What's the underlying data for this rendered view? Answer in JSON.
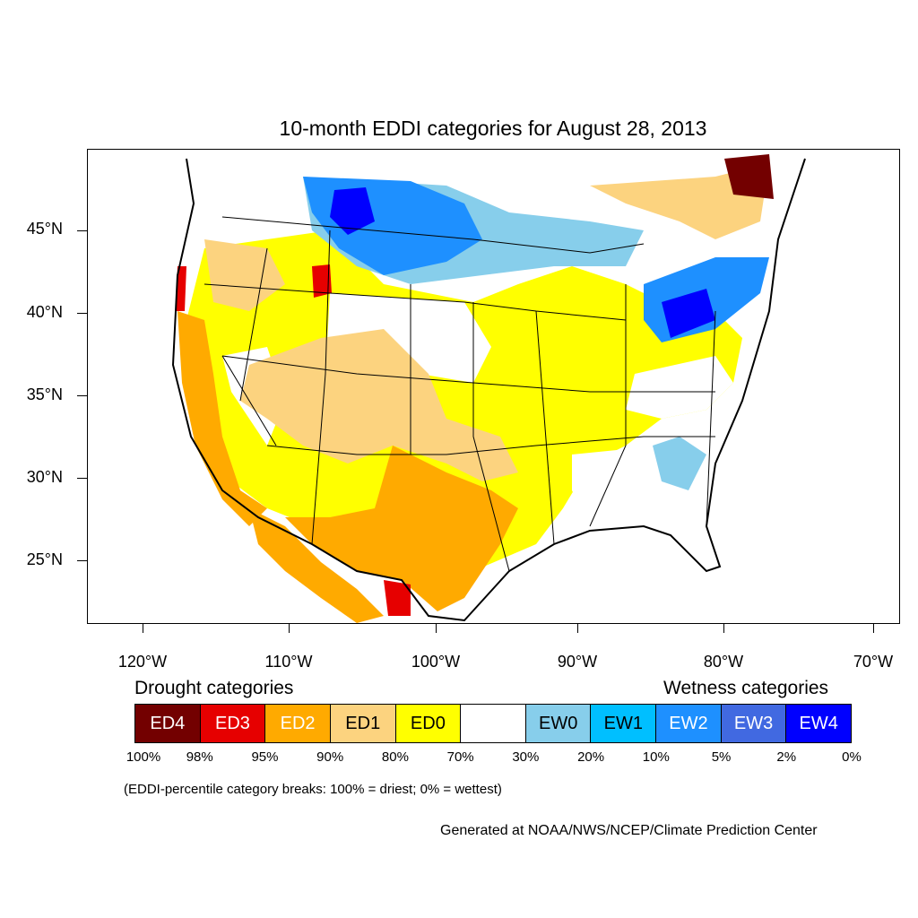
{
  "title": "10-month EDDI categories for August 28, 2013",
  "y_axis_labels": [
    "45°N",
    "40°N",
    "35°N",
    "30°N",
    "25°N"
  ],
  "x_axis_labels": [
    "120°W",
    "110°W",
    "100°W",
    "90°W",
    "80°W",
    "70°W"
  ],
  "legend": {
    "drought_heading": "Drought categories",
    "wetness_heading": "Wetness categories",
    "categories": [
      {
        "label": "ED4",
        "color": "#730000",
        "text_color": "#ffffff"
      },
      {
        "label": "ED3",
        "color": "#e60000",
        "text_color": "#ffffff"
      },
      {
        "label": "ED2",
        "color": "#ffaa00",
        "text_color": "#ffffff"
      },
      {
        "label": "ED1",
        "color": "#fcd37f",
        "text_color": "#000000"
      },
      {
        "label": "ED0",
        "color": "#ffff00",
        "text_color": "#000000"
      },
      {
        "label": "",
        "color": "#ffffff",
        "text_color": "#000000"
      },
      {
        "label": "EW0",
        "color": "#87ceeb",
        "text_color": "#000000"
      },
      {
        "label": "EW1",
        "color": "#00bfff",
        "text_color": "#000000"
      },
      {
        "label": "EW2",
        "color": "#1e90ff",
        "text_color": "#ffffff"
      },
      {
        "label": "EW3",
        "color": "#4169e1",
        "text_color": "#ffffff"
      },
      {
        "label": "EW4",
        "color": "#0000ff",
        "text_color": "#ffffff"
      }
    ],
    "breaks": [
      "100%",
      "98%",
      "95%",
      "90%",
      "80%",
      "70%",
      "30%",
      "20%",
      "10%",
      "5%",
      "2%",
      "0%"
    ]
  },
  "note": "(EDDI-percentile category breaks: 100% = driest; 0% = wettest)",
  "credit": "Generated at NOAA/NWS/NCEP/Climate Prediction Center"
}
